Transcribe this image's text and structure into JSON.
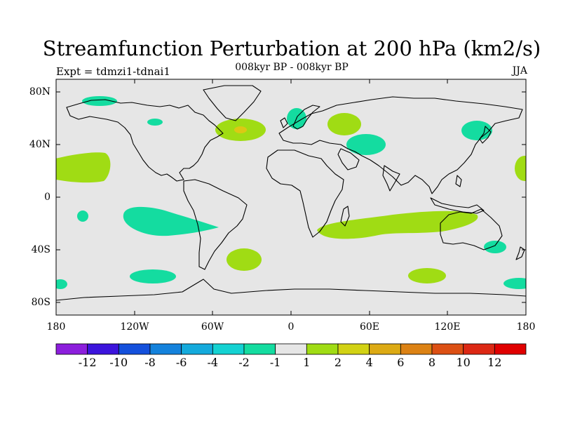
{
  "title": "Streamfunction Perturbation at 200 hPa (km2/s)",
  "subtitle": "008kyr BP - 008kyr BP",
  "left_label": "Expt = tdmzi1-tdnai1",
  "right_label": "JJA",
  "lat_ticks": [
    "80N",
    "40N",
    "0",
    "40S",
    "80S"
  ],
  "lon_ticks": [
    "180",
    "120W",
    "60W",
    "0",
    "60E",
    "120E",
    "180"
  ],
  "colorbar": {
    "labels": [
      "-12",
      "-10",
      "-8",
      "-6",
      "-4",
      "-2",
      "-1",
      "1",
      "2",
      "4",
      "6",
      "8",
      "10",
      "12"
    ],
    "colors": [
      "#8c1edc",
      "#3c14dc",
      "#1450dc",
      "#1482dc",
      "#14aadc",
      "#14d2d2",
      "#14dca0",
      "#e6e6e6",
      "#a0dc14",
      "#d2d214",
      "#dcaa14",
      "#dc8214",
      "#dc5014",
      "#dc2814",
      "#e00000"
    ]
  },
  "colors": {
    "background": "#e6e6e6",
    "positive_1_2": "#a0dc14",
    "positive_2_4": "#dcc814",
    "negative_1_2": "#14dca0"
  },
  "chart_data": {
    "type": "map",
    "projection": "cylindrical-equidistant",
    "lon_range": [
      -180,
      180
    ],
    "lat_range": [
      -90,
      90
    ],
    "contour_levels": [
      -12,
      -10,
      -8,
      -6,
      -4,
      -2,
      -1,
      1,
      2,
      4,
      6,
      8,
      10,
      12
    ],
    "units": "km2/s",
    "anomaly_regions": [
      {
        "lon": -140,
        "lat": 72,
        "range": "-2 to -1"
      },
      {
        "lon": -115,
        "lat": 58,
        "range": "-2 to -1"
      },
      {
        "lon": -35,
        "lat": 52,
        "range": "1 to 2",
        "core": "2 to 4"
      },
      {
        "lon": 5,
        "lat": 60,
        "range": "-2 to -1"
      },
      {
        "lon": 40,
        "lat": 55,
        "range": "1 to 2"
      },
      {
        "lon": 50,
        "lat": 40,
        "range": "-2 to -1"
      },
      {
        "lon": 140,
        "lat": 50,
        "range": "-2 to -1"
      },
      {
        "lon": -165,
        "lat": 20,
        "range": "1 to 2"
      },
      {
        "lon": 175,
        "lat": 20,
        "range": "1 to 2"
      },
      {
        "lon": -170,
        "lat": -15,
        "range": "-2 to -1"
      },
      {
        "lon": -100,
        "lat": -18,
        "range": "-2 to -1"
      },
      {
        "lon": 60,
        "lat": -25,
        "range": "1 to 2"
      },
      {
        "lon": 150,
        "lat": -38,
        "range": "-2 to -1"
      },
      {
        "lon": -30,
        "lat": -48,
        "range": "1 to 2"
      },
      {
        "lon": -95,
        "lat": -60,
        "range": "-2 to -1"
      },
      {
        "lon": -175,
        "lat": -68,
        "range": "-2 to -1"
      },
      {
        "lon": 105,
        "lat": -60,
        "range": "1 to 2"
      },
      {
        "lon": 170,
        "lat": -68,
        "range": "-2 to -1"
      }
    ]
  }
}
